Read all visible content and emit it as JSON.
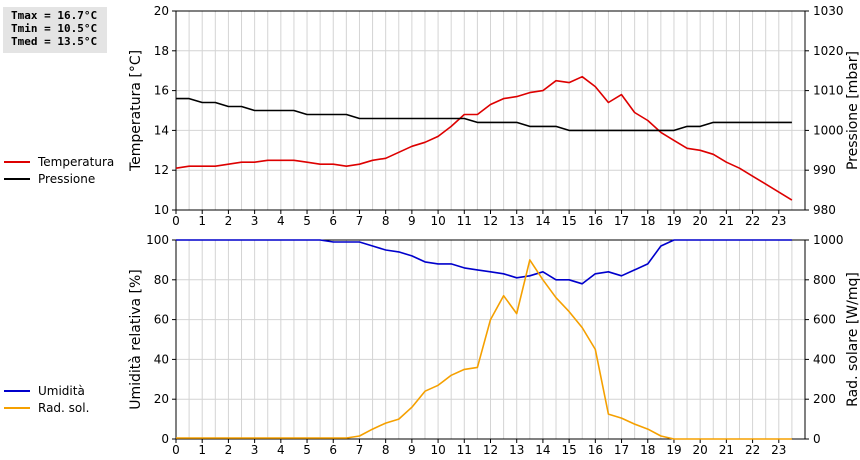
{
  "stats": {
    "tmax": "Tmax = 16.7°C",
    "tmin": "Tmin = 10.5°C",
    "tmed": "Tmed = 13.5°C"
  },
  "legend_top": [
    {
      "name": "Temperatura",
      "color": "#dd0000"
    },
    {
      "name": "Pressione",
      "color": "#000000"
    }
  ],
  "legend_bottom": [
    {
      "name": "Umidità",
      "color": "#0000cc"
    },
    {
      "name": "Rad. sol.",
      "color": "#f5a000"
    }
  ],
  "chart_data": [
    {
      "type": "line",
      "x_ticks": [
        "0",
        "1",
        "2",
        "3",
        "4",
        "5",
        "6",
        "7",
        "8",
        "9",
        "10",
        "11",
        "12",
        "13",
        "14",
        "15",
        "16",
        "17",
        "18",
        "19",
        "20",
        "21",
        "22",
        "23"
      ],
      "xlim": [
        0,
        24
      ],
      "ylabel_left": "Temperatura [°C]",
      "ylim_left": [
        10,
        20
      ],
      "yticks_left": [
        "10",
        "12",
        "14",
        "16",
        "18",
        "20"
      ],
      "ylabel_right": "Pressione [mbar]",
      "ylim_right": [
        980,
        1030
      ],
      "yticks_right": [
        "980",
        "990",
        "1000",
        "1010",
        "1020",
        "1030"
      ],
      "grid": true,
      "series": [
        {
          "name": "Temperatura",
          "axis": "left",
          "color": "#dd0000",
          "x": [
            0,
            0.5,
            1,
            1.5,
            2,
            2.5,
            3,
            3.5,
            4,
            4.5,
            5,
            5.5,
            6,
            6.5,
            7,
            7.5,
            8,
            8.5,
            9,
            9.5,
            10,
            10.5,
            11,
            11.5,
            12,
            12.5,
            13,
            13.5,
            14,
            14.5,
            15,
            15.5,
            16,
            16.5,
            17,
            17.5,
            18,
            18.5,
            19,
            19.5,
            20,
            20.5,
            21,
            21.5,
            22,
            22.5,
            23,
            23.5
          ],
          "values": [
            12.1,
            12.2,
            12.2,
            12.2,
            12.3,
            12.4,
            12.4,
            12.5,
            12.5,
            12.5,
            12.4,
            12.3,
            12.3,
            12.2,
            12.3,
            12.5,
            12.6,
            12.9,
            13.2,
            13.4,
            13.7,
            14.2,
            14.8,
            14.8,
            15.3,
            15.6,
            15.7,
            15.9,
            16.0,
            16.5,
            16.4,
            16.7,
            16.2,
            15.4,
            15.8,
            14.9,
            14.5,
            13.9,
            13.5,
            13.1,
            13.0,
            12.8,
            12.4,
            12.1,
            11.7,
            11.3,
            10.9,
            10.5
          ]
        },
        {
          "name": "Pressione",
          "axis": "right",
          "color": "#000000",
          "x": [
            0,
            0.5,
            1,
            1.5,
            2,
            2.5,
            3,
            3.5,
            4,
            4.5,
            5,
            5.5,
            6,
            6.5,
            7,
            7.5,
            8,
            8.5,
            9,
            9.5,
            10,
            10.5,
            11,
            11.5,
            12,
            12.5,
            13,
            13.5,
            14,
            14.5,
            15,
            15.5,
            16,
            16.5,
            17,
            17.5,
            18,
            18.5,
            19,
            19.5,
            20,
            20.5,
            21,
            21.5,
            22,
            22.5,
            23,
            23.5
          ],
          "values": [
            1008,
            1008,
            1007,
            1007,
            1006,
            1006,
            1005,
            1005,
            1005,
            1005,
            1004,
            1004,
            1004,
            1004,
            1003,
            1003,
            1003,
            1003,
            1003,
            1003,
            1003,
            1003,
            1003,
            1002,
            1002,
            1002,
            1002,
            1001,
            1001,
            1001,
            1000,
            1000,
            1000,
            1000,
            1000,
            1000,
            1000,
            1000,
            1000,
            1001,
            1001,
            1002,
            1002,
            1002,
            1002,
            1002,
            1002,
            1002
          ]
        }
      ]
    },
    {
      "type": "line",
      "x_ticks": [
        "0",
        "1",
        "2",
        "3",
        "4",
        "5",
        "6",
        "7",
        "8",
        "9",
        "10",
        "11",
        "12",
        "13",
        "14",
        "15",
        "16",
        "17",
        "18",
        "19",
        "20",
        "21",
        "22",
        "23"
      ],
      "xlim": [
        0,
        24
      ],
      "ylabel_left": "Umidità relativa [%]",
      "ylim_left": [
        0,
        100
      ],
      "yticks_left": [
        "0",
        "20",
        "40",
        "60",
        "80",
        "100"
      ],
      "ylabel_right": "Rad. solare [W/mq]",
      "ylim_right": [
        0,
        1000
      ],
      "yticks_right": [
        "0",
        "200",
        "400",
        "600",
        "800",
        "1000"
      ],
      "grid": true,
      "series": [
        {
          "name": "Umidità",
          "axis": "left",
          "color": "#0000cc",
          "x": [
            0,
            5.5,
            6,
            6.5,
            7,
            7.5,
            8,
            8.5,
            9,
            9.5,
            10,
            10.5,
            11,
            11.5,
            12,
            12.5,
            13,
            13.5,
            14,
            14.5,
            15,
            15.5,
            16,
            16.5,
            17,
            17.5,
            18,
            18.5,
            19,
            23.5
          ],
          "values": [
            100,
            100,
            99,
            99,
            99,
            97,
            95,
            94,
            92,
            89,
            88,
            88,
            86,
            85,
            84,
            83,
            81,
            82,
            84,
            80,
            80,
            78,
            83,
            84,
            82,
            85,
            88,
            97,
            100,
            100
          ]
        },
        {
          "name": "Rad. sol.",
          "axis": "right",
          "color": "#f5a000",
          "x": [
            0,
            6.5,
            7,
            7.5,
            8,
            8.5,
            9,
            9.5,
            10,
            10.5,
            11,
            11.5,
            12,
            12.5,
            13,
            13.5,
            14,
            14.5,
            15,
            15.5,
            16,
            16.5,
            17,
            17.5,
            18,
            18.5,
            19,
            23.5
          ],
          "values": [
            5,
            5,
            15,
            50,
            80,
            100,
            160,
            240,
            270,
            320,
            350,
            360,
            600,
            720,
            630,
            900,
            800,
            710,
            640,
            560,
            450,
            125,
            105,
            75,
            50,
            15,
            0,
            0
          ]
        }
      ]
    }
  ]
}
